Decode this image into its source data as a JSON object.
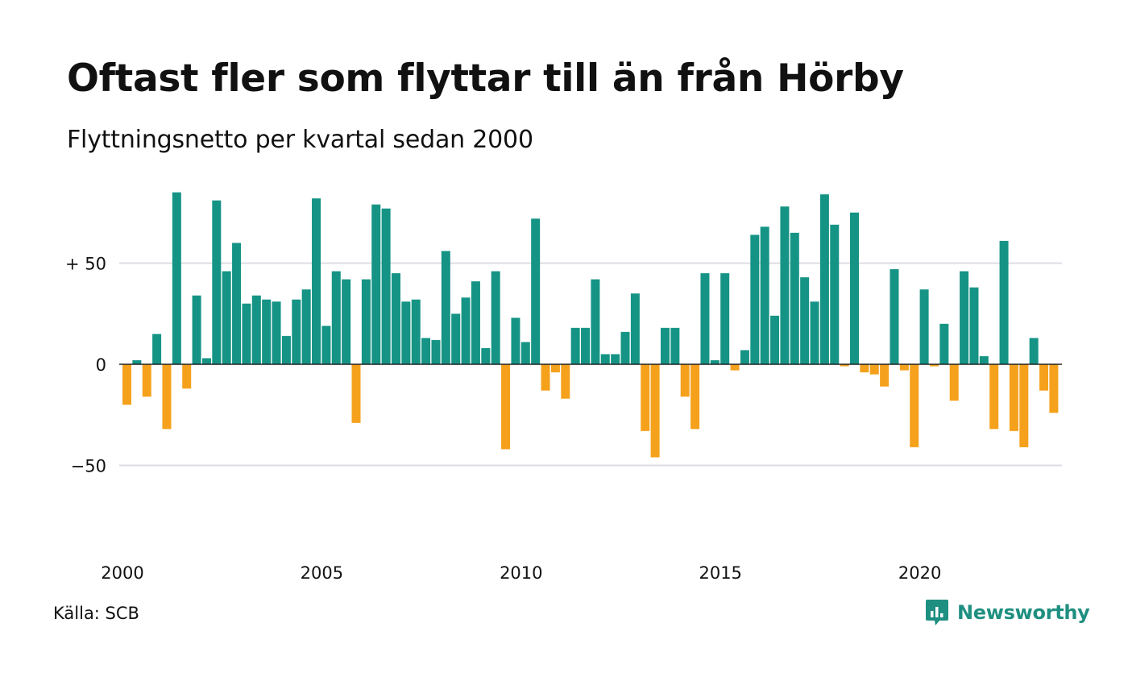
{
  "header": {
    "title": "Oftast fler som flyttar till än från Hörby",
    "subtitle": "Flyttningsnetto per kvartal sedan 2000"
  },
  "footer": {
    "source": "Källa: SCB",
    "brand": "Newsworthy",
    "brand_icon": "newsworthy-logo-icon"
  },
  "colors": {
    "positive": "#159485",
    "negative": "#f5a11c",
    "grid": "#dcdce4",
    "zero_line": "#222222",
    "brand": "#1e8f80"
  },
  "chart_data": {
    "type": "bar",
    "title": "Oftast fler som flyttar till än från Hörby",
    "subtitle": "Flyttningsnetto per kvartal sedan 2000",
    "xlabel": "",
    "ylabel": "",
    "ylim": [
      -80,
      85
    ],
    "grid": true,
    "y_ticks": [
      {
        "value": 50,
        "label": "+ 50"
      },
      {
        "value": 0,
        "label": "0"
      },
      {
        "value": -50,
        "label": "−50"
      }
    ],
    "x_ticks": [
      {
        "year": 2000,
        "label": "2000"
      },
      {
        "year": 2005,
        "label": "2005"
      },
      {
        "year": 2010,
        "label": "2010"
      },
      {
        "year": 2015,
        "label": "2015"
      },
      {
        "year": 2020,
        "label": "2020"
      }
    ],
    "start_year": 2000,
    "period": "quarter",
    "values": [
      -20,
      2,
      -16,
      15,
      -32,
      85,
      -12,
      34,
      3,
      81,
      46,
      60,
      30,
      34,
      32,
      31,
      14,
      32,
      37,
      82,
      19,
      46,
      42,
      -29,
      42,
      79,
      77,
      45,
      31,
      32,
      13,
      12,
      56,
      25,
      33,
      41,
      8,
      46,
      -42,
      23,
      11,
      72,
      -13,
      -4,
      -17,
      18,
      18,
      42,
      5,
      5,
      16,
      35,
      -33,
      -46,
      18,
      18,
      -16,
      -32,
      45,
      2,
      45,
      -3,
      7,
      64,
      68,
      24,
      78,
      65,
      43,
      31,
      84,
      69,
      -1,
      75,
      -4,
      -5,
      -11,
      47,
      -3,
      -41,
      37,
      -1,
      20,
      -18,
      46,
      38,
      4,
      -32,
      61,
      -33,
      -41,
      13,
      -13,
      -24
    ]
  }
}
